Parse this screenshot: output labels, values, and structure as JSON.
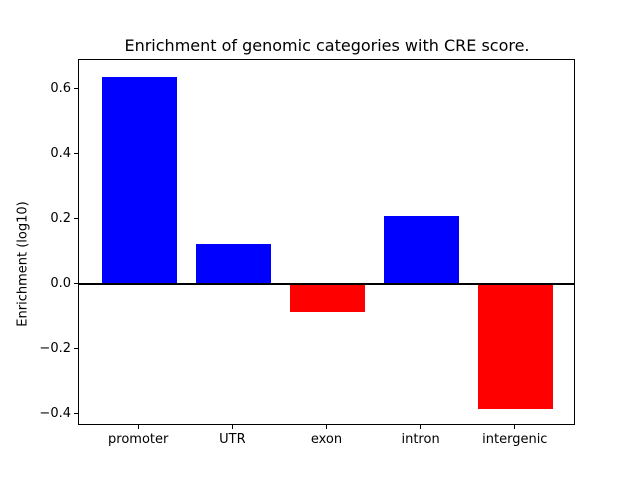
{
  "chart_data": {
    "type": "bar",
    "title": "Enrichment of genomic categories with CRE score.",
    "ylabel": "Enrichment (log10)",
    "xlabel": "",
    "categories": [
      "promoter",
      "UTR",
      "exon",
      "intron",
      "intergenic"
    ],
    "values": [
      0.64,
      0.125,
      -0.085,
      0.21,
      -0.385
    ],
    "bar_colors": [
      "#0000ff",
      "#0000ff",
      "#ff0000",
      "#0000ff",
      "#ff0000"
    ],
    "positive_color": "#0000ff",
    "negative_color": "#ff0000",
    "bar_width_fraction": 0.8,
    "xlim": [
      -0.64,
      4.64
    ],
    "ylim": [
      -0.436,
      0.691
    ],
    "yticks": [
      {
        "value": 0.6,
        "label": "0.6"
      },
      {
        "value": 0.4,
        "label": "0.4"
      },
      {
        "value": 0.2,
        "label": "0.2"
      },
      {
        "value": 0.0,
        "label": "0.0"
      },
      {
        "value": -0.2,
        "label": "−0.2"
      },
      {
        "value": -0.4,
        "label": "−0.4"
      }
    ],
    "zero_line": {
      "y": 0.0,
      "color": "#000000"
    },
    "axis_color": "#000000",
    "background_color": "#ffffff",
    "grid": false,
    "legend": null
  }
}
